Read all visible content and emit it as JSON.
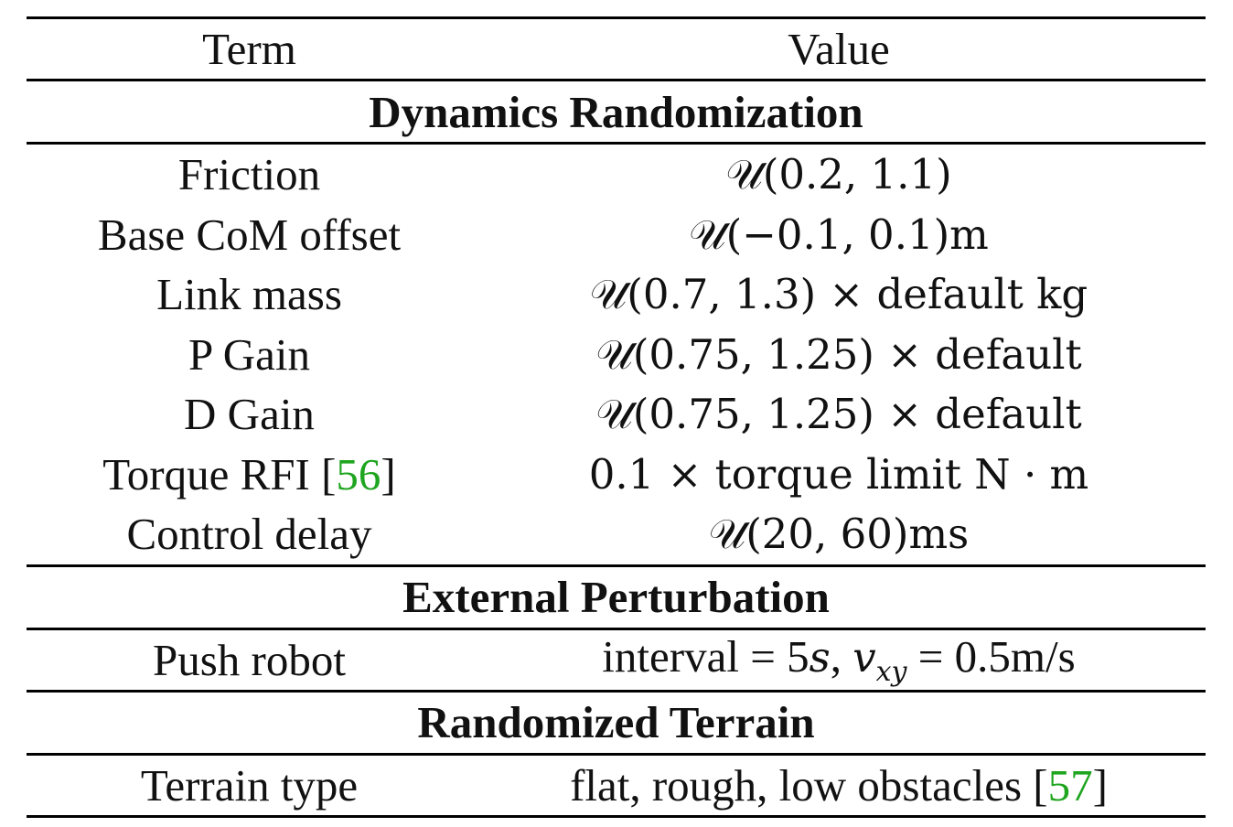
{
  "header": {
    "term": "Term",
    "value": "Value"
  },
  "sections": {
    "dynamics": "Dynamics Randomization",
    "external": "External Perturbation",
    "terrain": "Randomized Terrain"
  },
  "rows": {
    "friction": {
      "term": "Friction",
      "value": "𝒰(0.2, 1.1)"
    },
    "base_com": {
      "term": "Base CoM offset",
      "value": "𝒰(−0.1, 0.1)m"
    },
    "link_mass": {
      "term": "Link mass",
      "value": "𝒰(0.7, 1.3) × default kg"
    },
    "p_gain": {
      "term": "P Gain",
      "value": "𝒰(0.75, 1.25) × default"
    },
    "d_gain": {
      "term": "D Gain",
      "value": "𝒰(0.75, 1.25) × default"
    },
    "torque_rfi": {
      "term_prefix": "Torque RFI [",
      "term_cite": "56",
      "term_suffix": "]",
      "value": "0.1 × torque limit N · m"
    },
    "control_delay": {
      "term": "Control delay",
      "value": "𝒰(20, 60)ms"
    },
    "push_robot": {
      "term": "Push robot",
      "value_prefix": "interval = 5",
      "value_s": "s",
      "value_mid": ", ",
      "value_v": "v",
      "value_sub": "xy",
      "value_suffix": " = 0.5m/s"
    },
    "terrain_type": {
      "term": "Terrain type",
      "value_prefix": "flat, rough, low obstacles [",
      "value_cite": "57",
      "value_suffix": "]"
    }
  },
  "colors": {
    "citation": "#1fa51f",
    "rule": "#000000",
    "text": "#111111"
  }
}
